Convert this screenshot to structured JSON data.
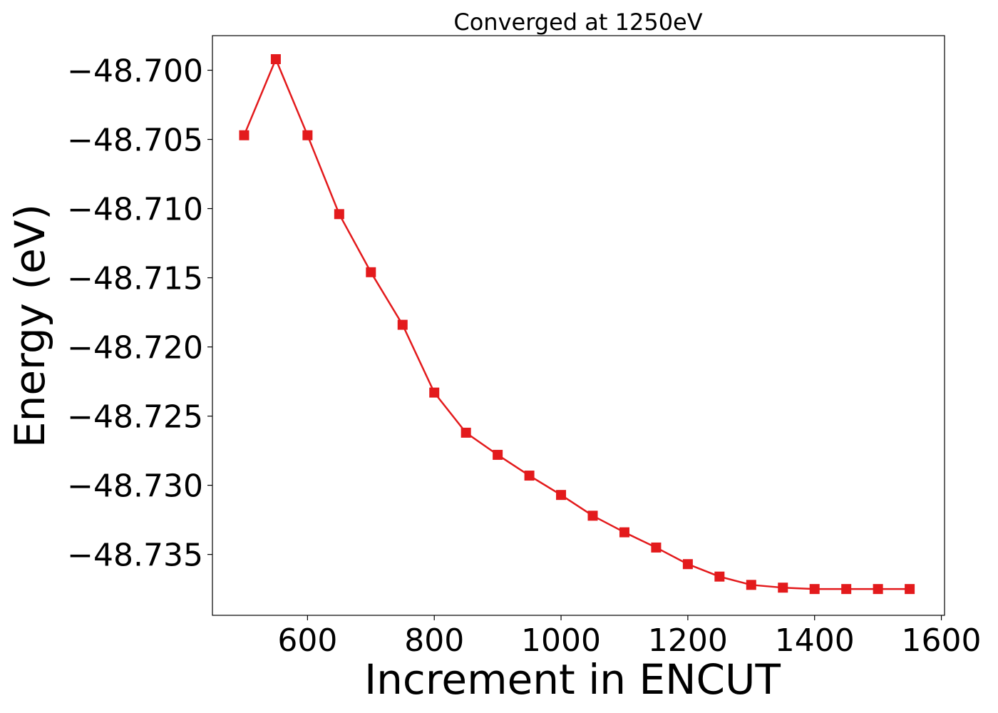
{
  "chart_data": {
    "type": "line",
    "title": "Converged at 1250eV",
    "xlabel": "Increment in ENCUT",
    "ylabel": "Energy (eV)",
    "xlim": [
      450,
      1605
    ],
    "ylim": [
      -48.7394,
      -48.6975
    ],
    "x_ticks": [
      600,
      800,
      1000,
      1200,
      1400,
      1600
    ],
    "x_tick_labels": [
      "600",
      "800",
      "1000",
      "1200",
      "1400",
      "1600"
    ],
    "y_ticks": [
      -48.7,
      -48.705,
      -48.71,
      -48.715,
      -48.72,
      -48.725,
      -48.73,
      -48.735
    ],
    "y_tick_labels": [
      "−48.700",
      "−48.705",
      "−48.710",
      "−48.715",
      "−48.720",
      "−48.725",
      "−48.730",
      "−48.735"
    ],
    "grid": false,
    "series": [
      {
        "color": "#e31a1c",
        "marker": "square",
        "x": [
          500,
          550,
          600,
          650,
          700,
          750,
          800,
          850,
          900,
          950,
          1000,
          1050,
          1100,
          1150,
          1200,
          1250,
          1300,
          1350,
          1400,
          1450,
          1500,
          1550
        ],
        "y": [
          -48.7047,
          -48.6992,
          -48.7047,
          -48.7104,
          -48.7146,
          -48.7184,
          -48.7233,
          -48.7262,
          -48.7278,
          -48.7293,
          -48.7307,
          -48.7322,
          -48.7334,
          -48.7345,
          -48.7357,
          -48.7366,
          -48.7372,
          -48.7374,
          -48.7375,
          -48.7375,
          -48.7375,
          -48.7375
        ]
      }
    ]
  }
}
